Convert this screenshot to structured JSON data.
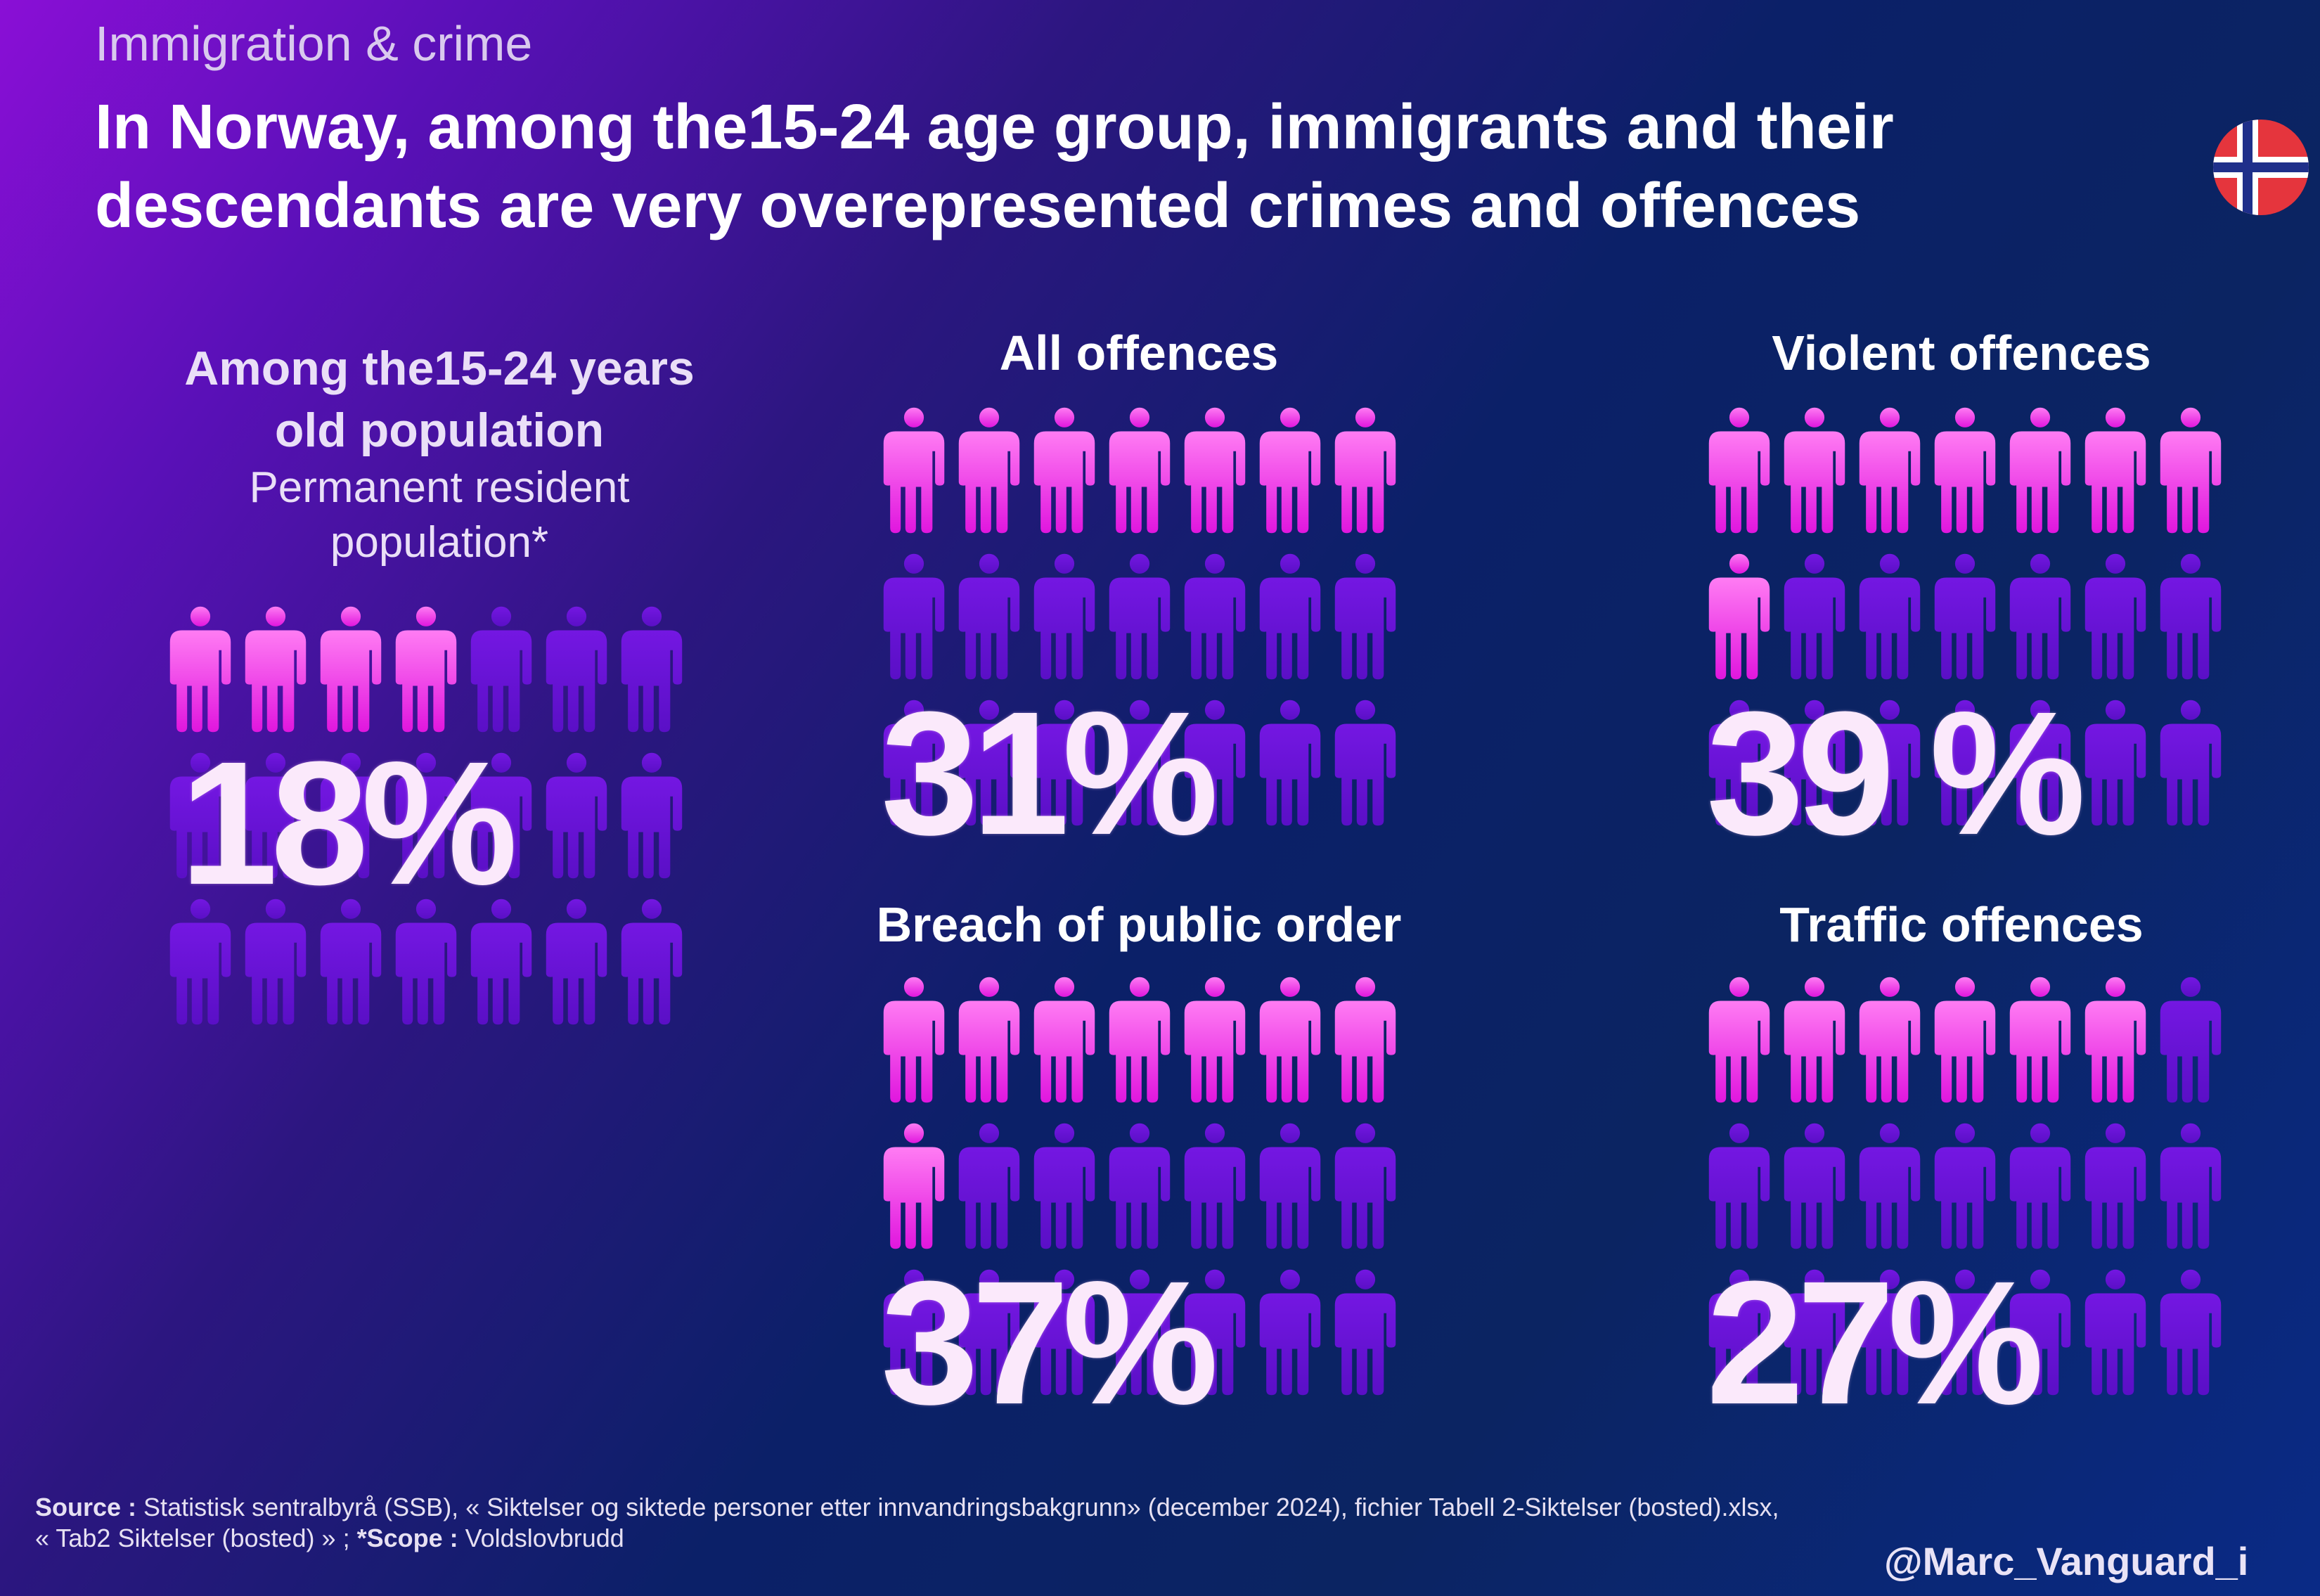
{
  "kicker": "Immigration & crime",
  "title": "In Norway, among the15-24 age group, immigrants and their descendants are very overepresented crimes and offences",
  "colors": {
    "highlight_person": "#f03ff0",
    "base_person": "#6a12d8",
    "background_start": "#8a0fd6",
    "background_end": "#0a2a86",
    "flag_red": "#e5353d",
    "flag_blue": "#1f2f8a"
  },
  "icons": {
    "person": "person-icon",
    "flag": "norway-flag-icon"
  },
  "population": {
    "title": "Among the15-24 years old population",
    "subtitle": "Permanent resident population*",
    "value_label": "18%"
  },
  "chart_data": [
    {
      "type": "pictogram",
      "title": "Among the15-24 years old population",
      "subtitle": "Permanent resident population*",
      "value": 18,
      "value_label": "18%",
      "highlighted": 4,
      "total": 21
    },
    {
      "type": "pictogram",
      "title": "All offences",
      "value": 31,
      "value_label": "31%",
      "highlighted": 7,
      "total": 21
    },
    {
      "type": "pictogram",
      "title": "Violent offences",
      "value": 39,
      "value_label": "39 %",
      "highlighted": 8,
      "total": 21
    },
    {
      "type": "pictogram",
      "title": "Breach of public order",
      "value": 37,
      "value_label": "37%",
      "highlighted": 8,
      "total": 21
    },
    {
      "type": "pictogram",
      "title": "Traffic offences",
      "value": 27,
      "value_label": "27%",
      "highlighted": 6,
      "total": 21
    }
  ],
  "source": {
    "label": "Source :",
    "text": " Statistisk sentralbyrå (SSB), « Siktelser og siktede personer etter innvandringsbakgrunn»  (december 2024), fichier Tabell 2-Siktelser (bosted).xlsx, « Tab2 Siktelser (bosted) » ; ",
    "scope_label": "*Scope :",
    "scope_text": " Voldslovbrudd"
  },
  "handle": "@Marc_Vanguard_i"
}
